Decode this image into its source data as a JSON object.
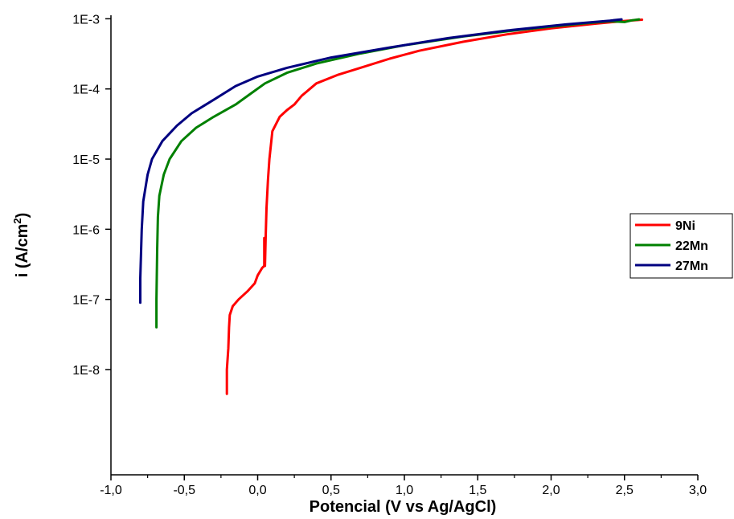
{
  "chart_data": {
    "type": "line",
    "title": "",
    "xlabel": "Potencial (V vs Ag/AgCl)",
    "ylabel": {
      "base": "i (A/cm",
      "sup": "2",
      "close": ")"
    },
    "xlim": [
      -1.0,
      3.0
    ],
    "ylim_log10": [
      -9.5,
      -2.95
    ],
    "yscale": "log",
    "grid": false,
    "legend_position": "right",
    "x_ticks": [
      {
        "value": -1.0,
        "label": "-1,0"
      },
      {
        "value": -0.5,
        "label": "-0,5"
      },
      {
        "value": 0.0,
        "label": "0,0"
      },
      {
        "value": 0.5,
        "label": "0,5"
      },
      {
        "value": 1.0,
        "label": "1,0"
      },
      {
        "value": 1.5,
        "label": "1,5"
      },
      {
        "value": 2.0,
        "label": "2,0"
      },
      {
        "value": 2.5,
        "label": "2,5"
      },
      {
        "value": 3.0,
        "label": "3,0"
      }
    ],
    "y_ticks": [
      {
        "value": 0.001,
        "label": "1E-3"
      },
      {
        "value": 0.0001,
        "label": "1E-4"
      },
      {
        "value": 1e-05,
        "label": "1E-5"
      },
      {
        "value": 1e-06,
        "label": "1E-6"
      },
      {
        "value": 1e-07,
        "label": "1E-7"
      },
      {
        "value": 1e-08,
        "label": "1E-8"
      }
    ],
    "series": [
      {
        "name": "9Ni",
        "color": "#ff0000",
        "points": [
          [
            -0.21,
            4.5e-09
          ],
          [
            -0.21,
            1e-08
          ],
          [
            -0.2,
            2e-08
          ],
          [
            -0.195,
            4e-08
          ],
          [
            -0.19,
            6e-08
          ],
          [
            -0.17,
            8e-08
          ],
          [
            -0.13,
            1e-07
          ],
          [
            -0.07,
            1.3e-07
          ],
          [
            -0.02,
            1.7e-07
          ],
          [
            0.0,
            2.2e-07
          ],
          [
            0.03,
            2.8e-07
          ],
          [
            0.045,
            3e-07
          ],
          [
            0.045,
            7.5e-07
          ],
          [
            0.05,
            3e-07
          ],
          [
            0.055,
            8e-07
          ],
          [
            0.06,
            2e-06
          ],
          [
            0.07,
            5e-06
          ],
          [
            0.08,
            1e-05
          ],
          [
            0.1,
            2.5e-05
          ],
          [
            0.15,
            4e-05
          ],
          [
            0.2,
            5e-05
          ],
          [
            0.25,
            6e-05
          ],
          [
            0.3,
            8e-05
          ],
          [
            0.4,
            0.00012
          ],
          [
            0.55,
            0.00016
          ],
          [
            0.7,
            0.0002
          ],
          [
            0.9,
            0.00027
          ],
          [
            1.1,
            0.00035
          ],
          [
            1.4,
            0.00047
          ],
          [
            1.7,
            0.0006
          ],
          [
            2.0,
            0.00073
          ],
          [
            2.3,
            0.00085
          ],
          [
            2.5,
            0.00093
          ],
          [
            2.62,
            0.00097
          ]
        ]
      },
      {
        "name": "22Mn",
        "color": "#008000",
        "points": [
          [
            -0.69,
            4e-08
          ],
          [
            -0.69,
            1e-07
          ],
          [
            -0.685,
            5e-07
          ],
          [
            -0.68,
            1.5e-06
          ],
          [
            -0.67,
            3e-06
          ],
          [
            -0.64,
            6e-06
          ],
          [
            -0.6,
            1e-05
          ],
          [
            -0.52,
            1.8e-05
          ],
          [
            -0.42,
            2.8e-05
          ],
          [
            -0.3,
            4e-05
          ],
          [
            -0.15,
            6e-05
          ],
          [
            -0.05,
            8.5e-05
          ],
          [
            0.05,
            0.00012
          ],
          [
            0.2,
            0.00017
          ],
          [
            0.4,
            0.00023
          ],
          [
            0.7,
            0.00032
          ],
          [
            1.0,
            0.00042
          ],
          [
            1.4,
            0.00056
          ],
          [
            1.8,
            0.0007
          ],
          [
            2.2,
            0.00085
          ],
          [
            2.4,
            0.00092
          ],
          [
            2.5,
            0.0009
          ],
          [
            2.55,
            0.00095
          ],
          [
            2.6,
            0.00098
          ]
        ]
      },
      {
        "name": "27Mn",
        "color": "#000080",
        "points": [
          [
            -0.8,
            9e-08
          ],
          [
            -0.8,
            2e-07
          ],
          [
            -0.79,
            1e-06
          ],
          [
            -0.78,
            2.5e-06
          ],
          [
            -0.75,
            6e-06
          ],
          [
            -0.72,
            1e-05
          ],
          [
            -0.65,
            1.8e-05
          ],
          [
            -0.55,
            3e-05
          ],
          [
            -0.45,
            4.5e-05
          ],
          [
            -0.3,
            7e-05
          ],
          [
            -0.15,
            0.00011
          ],
          [
            0.0,
            0.00015
          ],
          [
            0.2,
            0.0002
          ],
          [
            0.5,
            0.00028
          ],
          [
            0.9,
            0.00039
          ],
          [
            1.3,
            0.00053
          ],
          [
            1.7,
            0.00068
          ],
          [
            2.1,
            0.00083
          ],
          [
            2.4,
            0.00094
          ],
          [
            2.48,
            0.00098
          ]
        ]
      }
    ]
  }
}
